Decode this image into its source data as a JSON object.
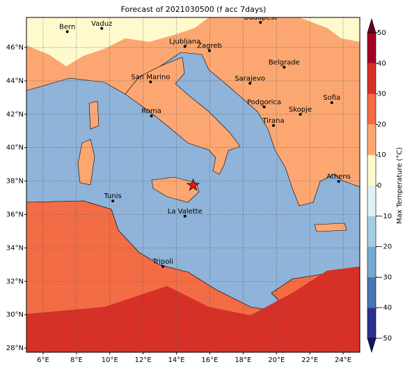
{
  "map": {
    "title": "Forecast of 2021030500 (f acc 7days)",
    "lon_range": [
      5,
      25
    ],
    "lat_range": [
      27.75,
      47.8
    ],
    "lon_ticks": [
      {
        "value": 6,
        "label": "6°E"
      },
      {
        "value": 8,
        "label": "8°E"
      },
      {
        "value": 10,
        "label": "10°E"
      },
      {
        "value": 12,
        "label": "12°E"
      },
      {
        "value": 14,
        "label": "14°E"
      },
      {
        "value": 16,
        "label": "16°E"
      },
      {
        "value": 18,
        "label": "18°E"
      },
      {
        "value": 20,
        "label": "20°E"
      },
      {
        "value": 22,
        "label": "22°E"
      },
      {
        "value": 24,
        "label": "24°E"
      }
    ],
    "lat_ticks": [
      {
        "value": 28,
        "label": "28°N"
      },
      {
        "value": 30,
        "label": "30°N"
      },
      {
        "value": 32,
        "label": "32°N"
      },
      {
        "value": 34,
        "label": "34°N"
      },
      {
        "value": 36,
        "label": "36°N"
      },
      {
        "value": 38,
        "label": "38°N"
      },
      {
        "value": 40,
        "label": "40°N"
      },
      {
        "value": 42,
        "label": "42°N"
      },
      {
        "value": 44,
        "label": "44°N"
      },
      {
        "value": 46,
        "label": "46°N"
      }
    ],
    "cities": [
      {
        "name": "Bern",
        "lon": 7.45,
        "lat": 46.95
      },
      {
        "name": "Vaduz",
        "lon": 9.52,
        "lat": 47.14
      },
      {
        "name": "Budapest",
        "lon": 19.04,
        "lat": 47.5
      },
      {
        "name": "Ljubljana",
        "lon": 14.51,
        "lat": 46.06
      },
      {
        "name": "Zagreb",
        "lon": 15.98,
        "lat": 45.81
      },
      {
        "name": "Belgrade",
        "lon": 20.46,
        "lat": 44.82
      },
      {
        "name": "San Marino",
        "lon": 12.45,
        "lat": 43.94
      },
      {
        "name": "Sarajevo",
        "lon": 18.41,
        "lat": 43.86
      },
      {
        "name": "Sofia",
        "lon": 23.32,
        "lat": 42.7
      },
      {
        "name": "Podgorica",
        "lon": 19.26,
        "lat": 42.44
      },
      {
        "name": "Skopje",
        "lon": 21.43,
        "lat": 42.0
      },
      {
        "name": "Roma",
        "lon": 12.5,
        "lat": 41.9
      },
      {
        "name": "Tirana",
        "lon": 19.82,
        "lat": 41.33
      },
      {
        "name": "Athens",
        "lon": 23.73,
        "lat": 37.98
      },
      {
        "name": "Tunis",
        "lon": 10.18,
        "lat": 36.81
      },
      {
        "name": "La Valette",
        "lon": 14.51,
        "lat": 35.9
      },
      {
        "name": "Tripoli",
        "lon": 13.19,
        "lat": 32.89
      }
    ],
    "marker": {
      "lon": 15.0,
      "lat": 37.75,
      "color": "#e41a1c"
    },
    "colorbar": {
      "label": "Max Temperature (°C)",
      "ticks": [
        {
          "value": -50,
          "label": "−50"
        },
        {
          "value": -40,
          "label": "−40"
        },
        {
          "value": -30,
          "label": "−30"
        },
        {
          "value": -20,
          "label": "−20"
        },
        {
          "value": -10,
          "label": "−10"
        },
        0,
        10,
        20,
        30,
        40,
        50
      ],
      "colors": [
        "#2b2f8e",
        "#4575b4",
        "#74a9cf",
        "#a6cee3",
        "#dff2f7",
        "#fffacd",
        "#fca772",
        "#f26c45",
        "#d73027",
        "#a50026"
      ],
      "under_color": "#14146b",
      "over_color": "#67001f"
    }
  }
}
